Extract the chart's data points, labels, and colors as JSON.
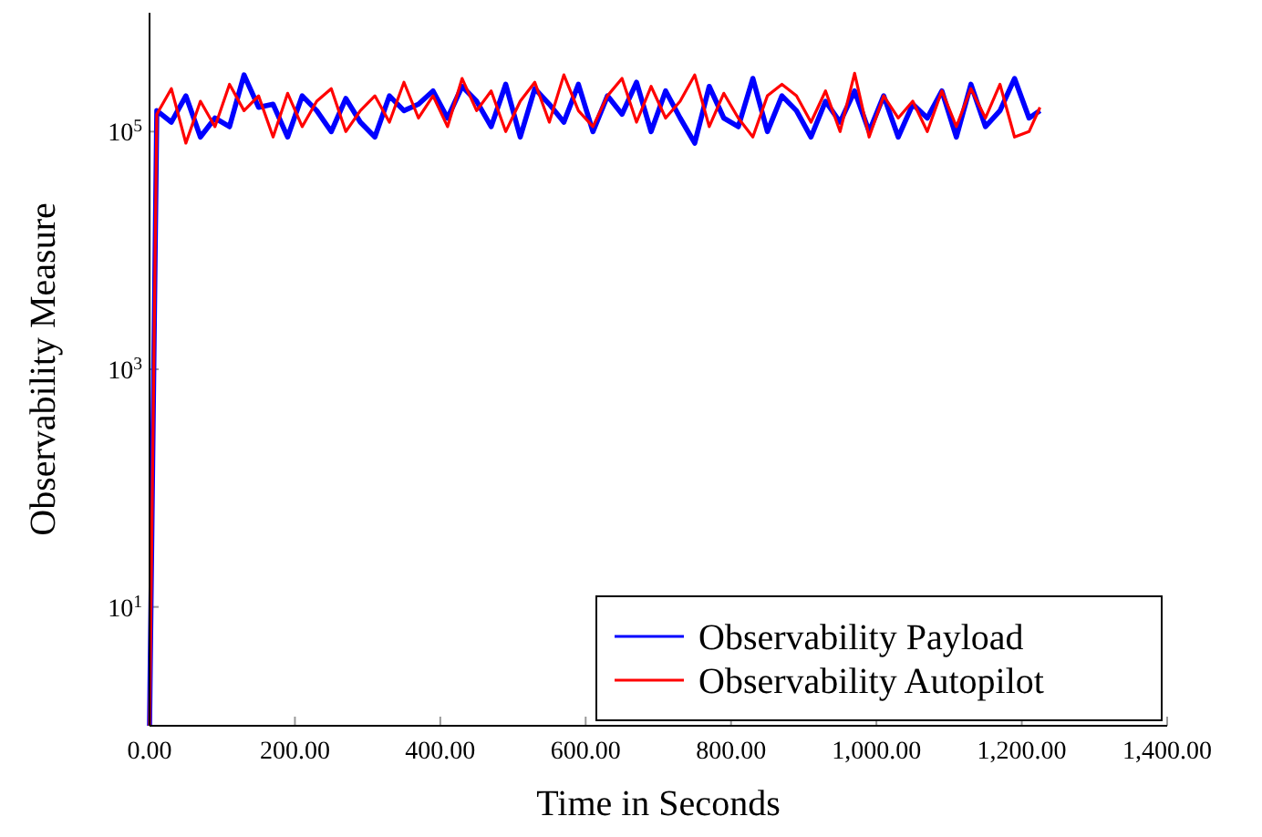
{
  "chart_data": {
    "type": "line",
    "xlabel": "Time in Seconds",
    "ylabel": "Observability Measure",
    "log": "y",
    "legend": "bottom right",
    "line_style": "solid",
    "marker": "none",
    "x": [
      0,
      10,
      30,
      50,
      70,
      90,
      110,
      130,
      150,
      170,
      190,
      210,
      230,
      250,
      270,
      290,
      310,
      330,
      350,
      370,
      390,
      410,
      430,
      450,
      470,
      490,
      510,
      530,
      550,
      570,
      590,
      610,
      630,
      650,
      670,
      690,
      710,
      730,
      750,
      770,
      790,
      810,
      830,
      850,
      870,
      890,
      910,
      930,
      950,
      970,
      990,
      1010,
      1030,
      1050,
      1070,
      1090,
      1110,
      1130,
      1150,
      1170,
      1190,
      1210,
      1225
    ],
    "xlim": [
      0,
      1400
    ],
    "xticks": [
      {
        "value": 0,
        "label": "0.00"
      },
      {
        "value": 200,
        "label": "200.00"
      },
      {
        "value": 400,
        "label": "400.00"
      },
      {
        "value": 600,
        "label": "600.00"
      },
      {
        "value": 800,
        "label": "800.00"
      },
      {
        "value": 1000,
        "label": "1,000.00"
      },
      {
        "value": 1200,
        "label": "1,200.00"
      },
      {
        "value": 1400,
        "label": "1,400.00"
      }
    ],
    "ylim": [
      1,
      1000000
    ],
    "yticks": [
      {
        "value": 10,
        "label": "10$^{1}$"
      },
      {
        "value": 1000,
        "label": "10$^{3}$"
      },
      {
        "value": 100000,
        "label": "10$^{5}$"
      }
    ],
    "series": [
      {
        "name": "Observability Payload",
        "color": "#0000ff",
        "values": [
          1,
          150000,
          120000,
          200000,
          90000,
          130000,
          110000,
          300000,
          160000,
          170000,
          90000,
          200000,
          150000,
          100000,
          190000,
          120000,
          90000,
          200000,
          150000,
          170000,
          220000,
          130000,
          240000,
          180000,
          110000,
          250000,
          90000,
          230000,
          170000,
          120000,
          250000,
          100000,
          200000,
          140000,
          260000,
          100000,
          220000,
          130000,
          80000,
          240000,
          130000,
          110000,
          280000,
          100000,
          200000,
          150000,
          90000,
          180000,
          120000,
          220000,
          100000,
          200000,
          90000,
          170000,
          130000,
          220000,
          90000,
          250000,
          110000,
          150000,
          280000,
          130000,
          150000
        ]
      },
      {
        "name": "Observability Autopilot",
        "color": "#ff0000",
        "values": [
          1,
          140000,
          230000,
          80000,
          180000,
          110000,
          250000,
          150000,
          200000,
          90000,
          210000,
          110000,
          180000,
          230000,
          100000,
          150000,
          200000,
          120000,
          260000,
          130000,
          200000,
          110000,
          280000,
          150000,
          220000,
          100000,
          180000,
          260000,
          120000,
          300000,
          150000,
          110000,
          200000,
          280000,
          120000,
          240000,
          130000,
          180000,
          300000,
          110000,
          210000,
          130000,
          90000,
          200000,
          250000,
          200000,
          120000,
          220000,
          100000,
          310000,
          90000,
          200000,
          130000,
          180000,
          100000,
          220000,
          110000,
          230000,
          130000,
          250000,
          90000,
          100000,
          160000
        ]
      }
    ]
  }
}
